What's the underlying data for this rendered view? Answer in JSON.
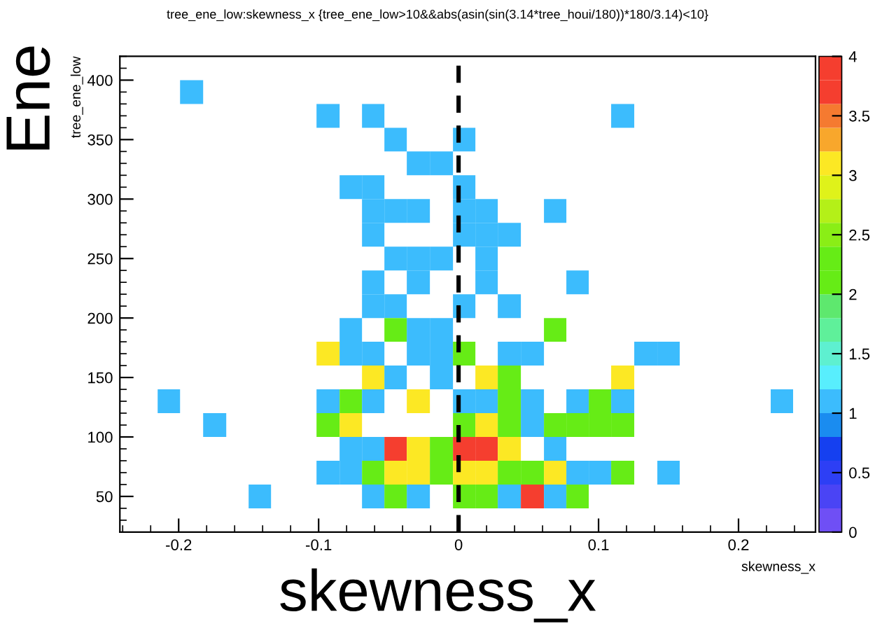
{
  "chart_data": {
    "type": "heatmap",
    "title": "tree_ene_low:skewness_x {tree_ene_low>10&&abs(asin(sin(3.14*tree_houi/180))*180/3.14)<10}",
    "xlabel": "skewness_x",
    "ylabel": "tree_ene_low",
    "annotations": [
      "Ene",
      "skewness_x"
    ],
    "x": [
      -0.207,
      -0.191,
      -0.174,
      -0.158,
      -0.142,
      -0.126,
      -0.11,
      -0.093,
      -0.077,
      -0.061,
      -0.045,
      -0.029,
      -0.012,
      0.004,
      0.02,
      0.036,
      0.053,
      0.069,
      0.085,
      0.101,
      0.117,
      0.134,
      0.15,
      0.166,
      0.182,
      0.198,
      0.215,
      0.231
    ],
    "y": [
      390,
      370,
      350,
      330,
      310,
      290,
      270,
      250,
      230,
      210,
      190,
      170,
      150,
      130,
      110,
      90,
      70,
      50
    ],
    "cells": [
      [
        null,
        1,
        null,
        null,
        null,
        null,
        null,
        null,
        null,
        null,
        null,
        null,
        null,
        null,
        null,
        null,
        null,
        null,
        null,
        null,
        null,
        null,
        null,
        null,
        null,
        null,
        null,
        null
      ],
      [
        null,
        null,
        null,
        null,
        null,
        null,
        null,
        1,
        null,
        1,
        null,
        null,
        null,
        null,
        null,
        null,
        null,
        null,
        null,
        null,
        1,
        null,
        null,
        null,
        null,
        null,
        null,
        null
      ],
      [
        null,
        null,
        null,
        null,
        null,
        null,
        null,
        null,
        null,
        null,
        1,
        null,
        null,
        1,
        null,
        null,
        null,
        null,
        null,
        null,
        null,
        null,
        null,
        null,
        null,
        null,
        null,
        null
      ],
      [
        null,
        null,
        null,
        null,
        null,
        null,
        null,
        null,
        null,
        null,
        null,
        1,
        1,
        null,
        null,
        null,
        null,
        null,
        null,
        null,
        null,
        null,
        null,
        null,
        null,
        null,
        null,
        null
      ],
      [
        null,
        null,
        null,
        null,
        null,
        null,
        null,
        null,
        1,
        1,
        null,
        null,
        null,
        1,
        null,
        null,
        null,
        null,
        null,
        null,
        null,
        null,
        null,
        null,
        null,
        null,
        null,
        null
      ],
      [
        null,
        null,
        null,
        null,
        null,
        null,
        null,
        null,
        null,
        1,
        1,
        1,
        null,
        1,
        1,
        null,
        null,
        1,
        null,
        null,
        null,
        null,
        null,
        null,
        null,
        null,
        null,
        null
      ],
      [
        null,
        null,
        null,
        null,
        null,
        null,
        null,
        null,
        null,
        1,
        null,
        null,
        null,
        1,
        1,
        1,
        null,
        null,
        null,
        null,
        null,
        null,
        null,
        null,
        null,
        null,
        null,
        null
      ],
      [
        null,
        null,
        null,
        null,
        null,
        null,
        null,
        null,
        null,
        null,
        1,
        1,
        1,
        null,
        1,
        null,
        null,
        null,
        null,
        null,
        null,
        null,
        null,
        null,
        null,
        null,
        null,
        null
      ],
      [
        null,
        null,
        null,
        null,
        null,
        null,
        null,
        null,
        null,
        1,
        null,
        1,
        null,
        null,
        1,
        null,
        null,
        null,
        1,
        null,
        null,
        null,
        null,
        null,
        null,
        null,
        null,
        null
      ],
      [
        null,
        null,
        null,
        null,
        null,
        null,
        null,
        null,
        null,
        1,
        1,
        null,
        null,
        1,
        null,
        1,
        null,
        null,
        null,
        null,
        null,
        null,
        null,
        null,
        null,
        null,
        null,
        null
      ],
      [
        null,
        null,
        null,
        null,
        null,
        null,
        null,
        null,
        1,
        null,
        2,
        1,
        1,
        null,
        null,
        null,
        null,
        2,
        null,
        null,
        null,
        null,
        null,
        null,
        null,
        null,
        null,
        null
      ],
      [
        null,
        null,
        null,
        null,
        null,
        null,
        null,
        3,
        1,
        1,
        null,
        1,
        1,
        2,
        null,
        1,
        1,
        null,
        null,
        null,
        null,
        1,
        1,
        null,
        null,
        null,
        null,
        null
      ],
      [
        null,
        null,
        null,
        null,
        null,
        null,
        null,
        null,
        null,
        3,
        1,
        null,
        1,
        null,
        3,
        2,
        null,
        null,
        null,
        null,
        3,
        null,
        null,
        null,
        null,
        null,
        null,
        null
      ],
      [
        1,
        null,
        null,
        null,
        null,
        null,
        null,
        1,
        2,
        1,
        null,
        3,
        null,
        1,
        1,
        2,
        1,
        null,
        1,
        2,
        1,
        null,
        null,
        null,
        null,
        null,
        null,
        1
      ],
      [
        null,
        null,
        1,
        null,
        null,
        null,
        null,
        2,
        3,
        null,
        null,
        null,
        null,
        2,
        3,
        2,
        1,
        2,
        2,
        2,
        2,
        null,
        null,
        null,
        null,
        null,
        null,
        null
      ],
      [
        null,
        null,
        null,
        null,
        null,
        null,
        null,
        null,
        1,
        1,
        4,
        3,
        2,
        4,
        4,
        3,
        null,
        1,
        null,
        null,
        null,
        null,
        null,
        null,
        null,
        null,
        null,
        null
      ],
      [
        null,
        null,
        null,
        null,
        null,
        null,
        null,
        1,
        1,
        2,
        3,
        3,
        2,
        3,
        3,
        2,
        2,
        3,
        1,
        1,
        2,
        null,
        1,
        null,
        null,
        null,
        null,
        null
      ],
      [
        null,
        null,
        null,
        null,
        1,
        null,
        null,
        null,
        null,
        1,
        2,
        1,
        null,
        2,
        2,
        1,
        4,
        1,
        2,
        null,
        null,
        null,
        null,
        null,
        null,
        null,
        null,
        null
      ]
    ],
    "xlim": [
      -0.242,
      0.255
    ],
    "ylim": [
      20,
      420
    ],
    "xticks": [
      -0.2,
      -0.1,
      0,
      0.1,
      0.2
    ],
    "yticks": [
      50,
      100,
      150,
      200,
      250,
      300,
      350,
      400
    ],
    "clim": [
      0,
      4
    ],
    "cticks": [
      0,
      0.5,
      1,
      1.5,
      2,
      2.5,
      3,
      3.5,
      4
    ],
    "ref_lines": [
      {
        "axis": "x",
        "value": 0,
        "color": "#000000",
        "line_style": "dashed"
      }
    ],
    "grid": false
  }
}
